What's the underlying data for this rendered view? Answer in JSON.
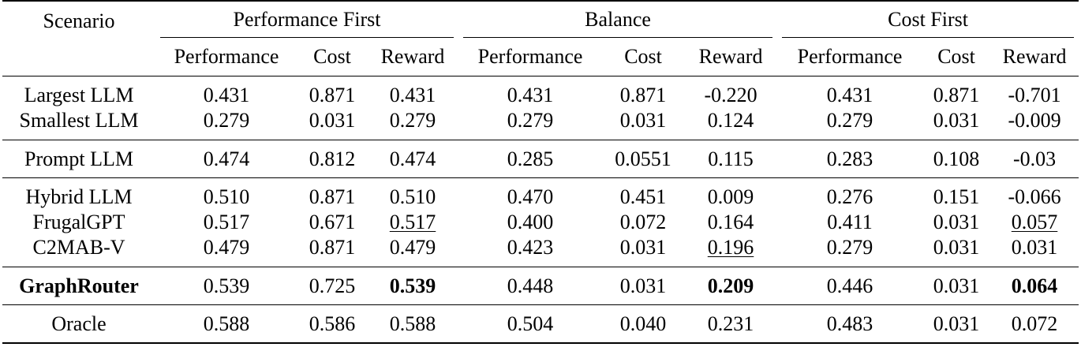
{
  "header": {
    "scenario_label": "Scenario",
    "groups": [
      "Performance First",
      "Balance",
      "Cost First"
    ],
    "subcolumns": [
      "Performance",
      "Cost",
      "Reward"
    ]
  },
  "rows": [
    {
      "name": "Largest LLM",
      "vals": [
        "0.431",
        "0.871",
        "0.431",
        "0.431",
        "0.871",
        "-0.220",
        "0.431",
        "0.871",
        "-0.701"
      ]
    },
    {
      "name": "Smallest LLM",
      "vals": [
        "0.279",
        "0.031",
        "0.279",
        "0.279",
        "0.031",
        "0.124",
        "0.279",
        "0.031",
        "-0.009"
      ]
    },
    {
      "name": "Prompt LLM",
      "vals": [
        "0.474",
        "0.812",
        "0.474",
        "0.285",
        "0.0551",
        "0.115",
        "0.283",
        "0.108",
        "-0.03"
      ]
    },
    {
      "name": "Hybrid LLM",
      "vals": [
        "0.510",
        "0.871",
        "0.510",
        "0.470",
        "0.451",
        "0.009",
        "0.276",
        "0.151",
        "-0.066"
      ]
    },
    {
      "name": "FrugalGPT",
      "vals": [
        "0.517",
        "0.671",
        "0.517",
        "0.400",
        "0.072",
        "0.164",
        "0.411",
        "0.031",
        "0.057"
      ]
    },
    {
      "name": "C2MAB-V",
      "vals": [
        "0.479",
        "0.871",
        "0.479",
        "0.423",
        "0.031",
        "0.196",
        "0.279",
        "0.031",
        "0.031"
      ]
    },
    {
      "name": "GraphRouter",
      "vals": [
        "0.539",
        "0.725",
        "0.539",
        "0.448",
        "0.031",
        "0.209",
        "0.446",
        "0.031",
        "0.064"
      ]
    },
    {
      "name": "Oracle",
      "vals": [
        "0.588",
        "0.586",
        "0.588",
        "0.504",
        "0.040",
        "0.231",
        "0.483",
        "0.031",
        "0.072"
      ]
    }
  ]
}
